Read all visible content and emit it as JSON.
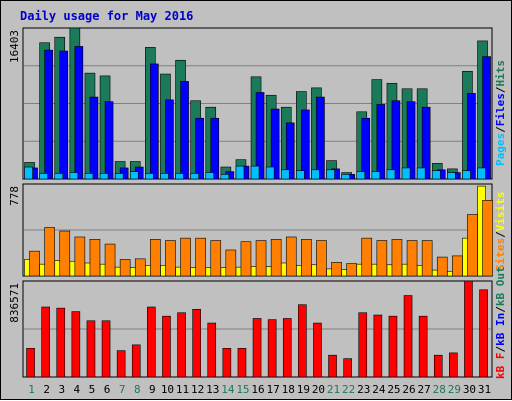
{
  "title": "Daily usage for May 2016",
  "chart_data": [
    {
      "type": "bar",
      "panel": "hits-files-pages",
      "max_label": "16403",
      "ylim": [
        0,
        16403
      ],
      "categories": [
        "1",
        "2",
        "3",
        "4",
        "5",
        "6",
        "7",
        "8",
        "9",
        "10",
        "11",
        "12",
        "13",
        "14",
        "15",
        "16",
        "17",
        "18",
        "19",
        "20",
        "21",
        "22",
        "23",
        "24",
        "25",
        "26",
        "27",
        "28",
        "29",
        "30",
        "31"
      ],
      "series": [
        {
          "name": "Hits",
          "color": "#1a7a5a",
          "values": [
            1800,
            14800,
            15400,
            16403,
            11500,
            11200,
            1900,
            1900,
            14300,
            11400,
            12900,
            8500,
            7800,
            1300,
            2100,
            11100,
            9100,
            7800,
            9500,
            9900,
            2000,
            700,
            7300,
            10800,
            10400,
            9800,
            9800,
            1700,
            1100,
            11700,
            15000
          ]
        },
        {
          "name": "Files",
          "color": "#0000ff",
          "values": [
            1200,
            14000,
            13900,
            14400,
            8900,
            8400,
            1200,
            1300,
            12500,
            8600,
            10600,
            6600,
            6600,
            800,
            1400,
            9400,
            7600,
            6100,
            7500,
            8900,
            1100,
            500,
            6600,
            8100,
            8500,
            8400,
            7800,
            1000,
            700,
            9300,
            13300
          ]
        },
        {
          "name": "Pages",
          "color": "#00bfff",
          "values": [
            1300,
            600,
            600,
            700,
            600,
            600,
            600,
            800,
            600,
            600,
            600,
            600,
            700,
            500,
            1400,
            1400,
            1300,
            1000,
            900,
            1000,
            1000,
            500,
            800,
            800,
            1000,
            1200,
            1200,
            900,
            700,
            900,
            1200
          ]
        }
      ]
    },
    {
      "type": "bar",
      "panel": "visits-sites",
      "max_label": "778",
      "ylim": [
        0,
        778
      ],
      "categories": [
        "1",
        "2",
        "3",
        "4",
        "5",
        "6",
        "7",
        "8",
        "9",
        "10",
        "11",
        "12",
        "13",
        "14",
        "15",
        "16",
        "17",
        "18",
        "19",
        "20",
        "21",
        "22",
        "23",
        "24",
        "25",
        "26",
        "27",
        "28",
        "29",
        "30",
        "31"
      ],
      "series": [
        {
          "name": "Visits",
          "color": "#ffff00",
          "values": [
            140,
            100,
            130,
            125,
            110,
            100,
            75,
            70,
            90,
            90,
            75,
            70,
            70,
            70,
            75,
            80,
            80,
            110,
            90,
            95,
            60,
            55,
            100,
            100,
            95,
            100,
            90,
            50,
            40,
            320,
            760
          ]
        },
        {
          "name": "Sites",
          "color": "#ff8000",
          "values": [
            210,
            410,
            380,
            330,
            310,
            270,
            140,
            145,
            310,
            300,
            320,
            320,
            300,
            220,
            290,
            300,
            310,
            330,
            310,
            300,
            115,
            105,
            320,
            300,
            310,
            300,
            300,
            160,
            170,
            520,
            640
          ]
        }
      ]
    },
    {
      "type": "bar",
      "panel": "kbytes",
      "max_label": "836571",
      "ylim": [
        0,
        836571
      ],
      "categories": [
        "1",
        "2",
        "3",
        "4",
        "5",
        "6",
        "7",
        "8",
        "9",
        "10",
        "11",
        "12",
        "13",
        "14",
        "15",
        "16",
        "17",
        "18",
        "19",
        "20",
        "21",
        "22",
        "23",
        "24",
        "25",
        "26",
        "27",
        "28",
        "29",
        "30",
        "31"
      ],
      "series": [
        {
          "name": "KBytes",
          "color": "#ff0000",
          "values": [
            250000,
            610000,
            600000,
            570000,
            490000,
            490000,
            230000,
            280000,
            610000,
            530000,
            560000,
            590000,
            470000,
            250000,
            250000,
            510000,
            500000,
            510000,
            630000,
            470000,
            190000,
            160000,
            560000,
            540000,
            530000,
            710000,
            530000,
            190000,
            210000,
            836571,
            760000
          ]
        }
      ]
    }
  ],
  "legend": {
    "top": [
      {
        "text": "Pages",
        "color": "#00bfff"
      },
      {
        "text": "Files",
        "color": "#0000ff"
      },
      {
        "text": "Hits",
        "color": "#1a7a5a"
      }
    ],
    "middle": [
      {
        "text": "Sites",
        "color": "#ff8000"
      },
      {
        "text": "Visits",
        "color": "#ffff00"
      }
    ],
    "bottom": [
      {
        "text": "kB F",
        "color": "#ff0000"
      },
      {
        "text": "kB In",
        "color": "#0000ff"
      },
      {
        "text": "kB Out",
        "color": "#1a7a5a"
      }
    ],
    "separator": "/"
  },
  "day_colors": {
    "weekday": "#000000",
    "weekend": "#1a7a5a"
  },
  "weekend_days": [
    "1",
    "7",
    "8",
    "14",
    "15",
    "21",
    "22",
    "28",
    "29"
  ]
}
